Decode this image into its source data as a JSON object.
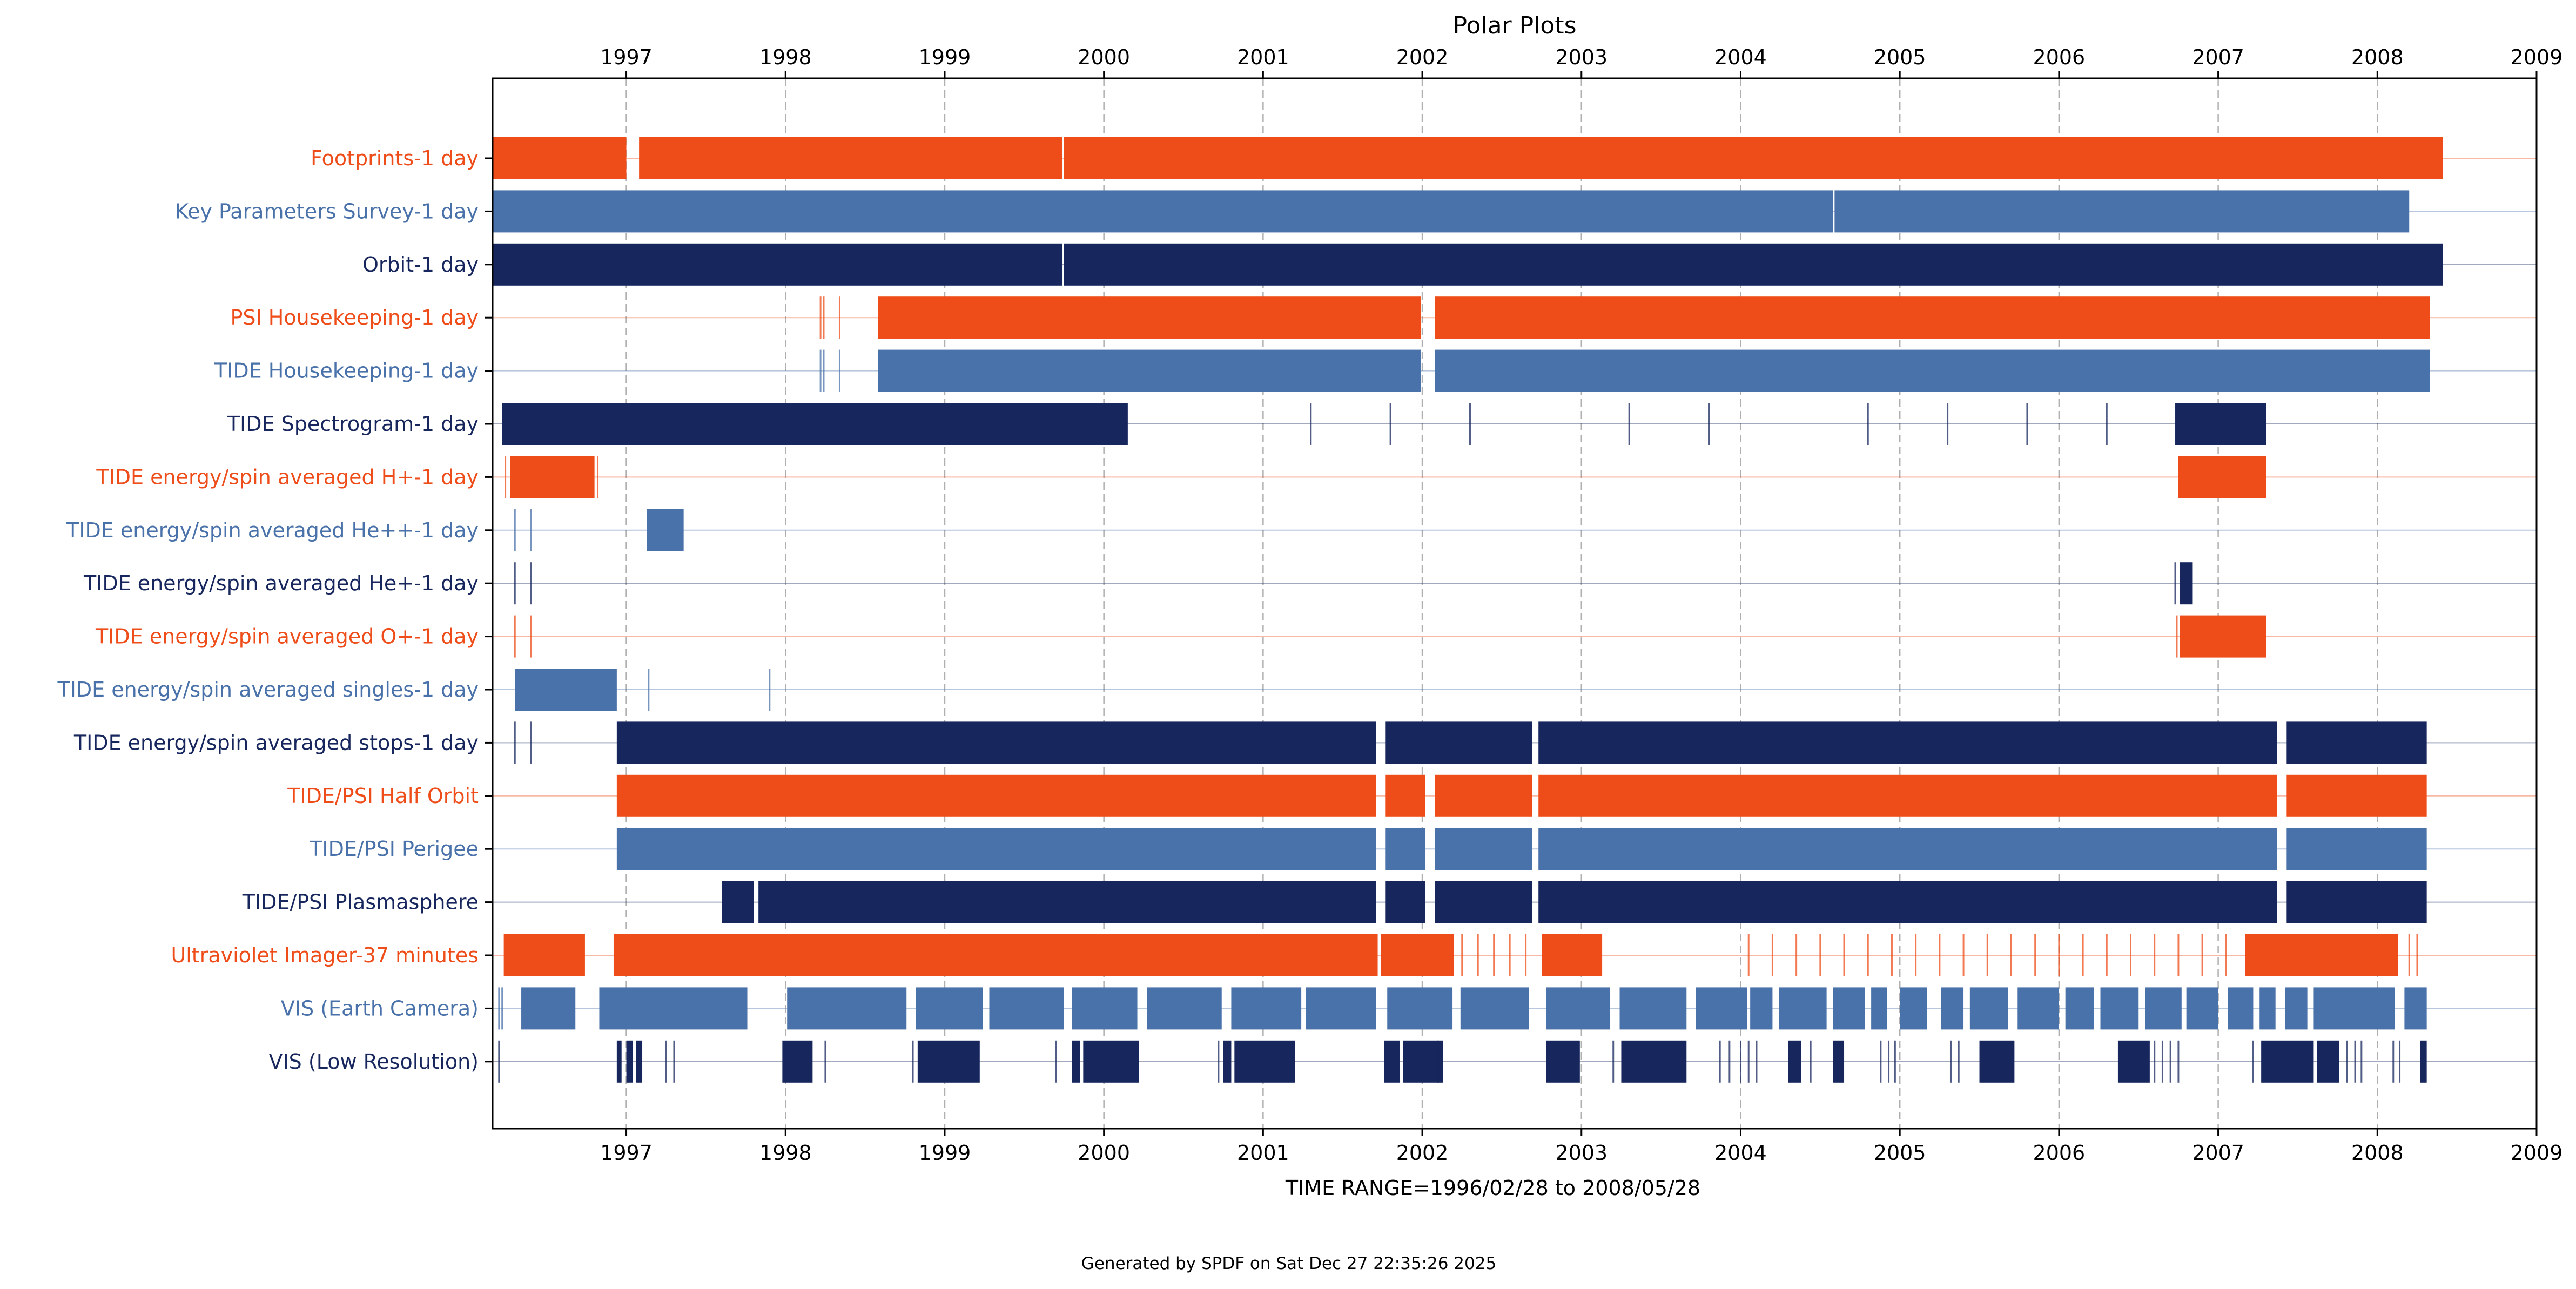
{
  "chart_data": {
    "type": "timeline",
    "title": "Polar Plots",
    "xlabel": "TIME RANGE=1996/02/28 to 2008/05/28",
    "footer": "Generated by SPDF on Sat Dec 27 22:35:26 2025",
    "xlim": [
      1996.16,
      2009.0
    ],
    "x_ticks": [
      1997,
      1998,
      1999,
      2000,
      2001,
      2002,
      2003,
      2004,
      2005,
      2006,
      2007,
      2008,
      2009
    ],
    "x_tick_labels": [
      "1997",
      "1998",
      "1999",
      "2000",
      "2001",
      "2002",
      "2003",
      "2004",
      "2005",
      "2006",
      "2007",
      "2008",
      "2009"
    ],
    "grid": "vertical dashed at year ticks",
    "palette": [
      "#ee4d19",
      "#4a72aa",
      "#17275e"
    ],
    "rows": [
      {
        "label": "Footprints-1 day",
        "color": "#ee4d19",
        "intervals": [
          [
            1996.16,
            1997.0
          ],
          [
            1997.08,
            1999.74
          ],
          [
            1999.75,
            2008.41
          ]
        ],
        "ticks": []
      },
      {
        "label": "Key Parameters Survey-1 day",
        "color": "#4a72aa",
        "intervals": [
          [
            1996.16,
            2004.58
          ],
          [
            2004.59,
            2008.2
          ]
        ],
        "ticks": []
      },
      {
        "label": "Orbit-1 day",
        "color": "#17275e",
        "intervals": [
          [
            1996.16,
            1999.74
          ],
          [
            1999.75,
            2008.41
          ]
        ],
        "ticks": []
      },
      {
        "label": "PSI Housekeeping-1 day",
        "color": "#ee4d19",
        "intervals": [
          [
            1998.58,
            2001.99
          ],
          [
            2002.08,
            2008.33
          ]
        ],
        "ticks": [
          1998.22,
          1998.24,
          1998.34
        ]
      },
      {
        "label": "TIDE Housekeeping-1 day",
        "color": "#4a72aa",
        "intervals": [
          [
            1998.58,
            2001.99
          ],
          [
            2002.08,
            2008.33
          ]
        ],
        "ticks": [
          1998.22,
          1998.24,
          1998.34
        ]
      },
      {
        "label": "TIDE Spectrogram-1 day",
        "color": "#17275e",
        "intervals": [
          [
            1996.22,
            2000.15
          ],
          [
            2006.73,
            2007.3
          ]
        ],
        "ticks": [
          2001.3,
          2001.8,
          2002.3,
          2003.3,
          2003.8,
          2004.8,
          2005.3,
          2005.8,
          2006.3
        ]
      },
      {
        "label": "TIDE energy/spin averaged H+-1 day",
        "color": "#ee4d19",
        "intervals": [
          [
            1996.27,
            1996.8
          ],
          [
            2006.75,
            2007.3
          ]
        ],
        "ticks": [
          1996.24,
          1996.82
        ]
      },
      {
        "label": "TIDE energy/spin averaged He++-1 day",
        "color": "#4a72aa",
        "intervals": [
          [
            1997.13,
            1997.36
          ]
        ],
        "ticks": [
          1996.3,
          1996.4
        ]
      },
      {
        "label": "TIDE energy/spin averaged He+-1 day",
        "color": "#17275e",
        "intervals": [
          [
            2006.76,
            2006.84
          ]
        ],
        "ticks": [
          1996.3,
          1996.4,
          2006.73
        ]
      },
      {
        "label": "TIDE energy/spin averaged O+-1 day",
        "color": "#ee4d19",
        "intervals": [
          [
            2006.76,
            2007.3
          ]
        ],
        "ticks": [
          1996.3,
          1996.4,
          2006.74
        ]
      },
      {
        "label": "TIDE energy/spin averaged singles-1 day",
        "color": "#4a72aa",
        "intervals": [
          [
            1996.3,
            1996.94
          ]
        ],
        "ticks": [
          1997.14,
          1997.9
        ]
      },
      {
        "label": "TIDE energy/spin averaged stops-1 day",
        "color": "#17275e",
        "intervals": [
          [
            1996.94,
            2001.71
          ],
          [
            2001.77,
            2002.69
          ],
          [
            2002.73,
            2007.37
          ],
          [
            2007.43,
            2008.31
          ]
        ],
        "ticks": [
          1996.3,
          1996.4
        ]
      },
      {
        "label": "TIDE/PSI Half Orbit",
        "color": "#ee4d19",
        "intervals": [
          [
            1996.94,
            2001.71
          ],
          [
            2001.77,
            2002.02
          ],
          [
            2002.08,
            2002.69
          ],
          [
            2002.73,
            2007.37
          ],
          [
            2007.43,
            2008.31
          ]
        ],
        "ticks": []
      },
      {
        "label": "TIDE/PSI Perigee",
        "color": "#4a72aa",
        "intervals": [
          [
            1996.94,
            2001.71
          ],
          [
            2001.77,
            2002.02
          ],
          [
            2002.08,
            2002.69
          ],
          [
            2002.73,
            2007.37
          ],
          [
            2007.43,
            2008.31
          ]
        ],
        "ticks": []
      },
      {
        "label": "TIDE/PSI Plasmasphere",
        "color": "#17275e",
        "intervals": [
          [
            1997.6,
            1997.8
          ],
          [
            1997.83,
            2001.71
          ],
          [
            2001.77,
            2002.02
          ],
          [
            2002.08,
            2002.69
          ],
          [
            2002.73,
            2007.37
          ],
          [
            2007.43,
            2008.31
          ]
        ],
        "ticks": []
      },
      {
        "label": "Ultraviolet Imager-37 minutes",
        "color": "#ee4d19",
        "intervals": [
          [
            1996.23,
            1996.74
          ],
          [
            1996.92,
            2001.72
          ],
          [
            2001.74,
            2002.2
          ],
          [
            2002.75,
            2003.13
          ],
          [
            2007.17,
            2008.13
          ]
        ],
        "ticks": [
          2002.25,
          2002.35,
          2002.45,
          2002.55,
          2002.65,
          2004.05,
          2004.2,
          2004.35,
          2004.5,
          2004.65,
          2004.8,
          2004.95,
          2005.1,
          2005.25,
          2005.4,
          2005.55,
          2005.7,
          2005.85,
          2006.0,
          2006.15,
          2006.3,
          2006.45,
          2006.6,
          2006.75,
          2006.9,
          2007.05,
          2008.2,
          2008.25
        ]
      },
      {
        "label": "VIS (Earth Camera)",
        "color": "#4a72aa",
        "intervals": [
          [
            1996.34,
            1996.68
          ],
          [
            1996.83,
            1997.76
          ],
          [
            1998.01,
            1998.76
          ],
          [
            1998.82,
            1999.24
          ],
          [
            1999.28,
            1999.75
          ],
          [
            1999.8,
            2000.21
          ],
          [
            2000.27,
            2000.74
          ],
          [
            2000.8,
            2001.24
          ],
          [
            2001.27,
            2001.71
          ],
          [
            2001.78,
            2002.19
          ],
          [
            2002.24,
            2002.67
          ],
          [
            2002.78,
            2003.18
          ],
          [
            2003.24,
            2003.66
          ],
          [
            2003.72,
            2004.04
          ],
          [
            2004.06,
            2004.2
          ],
          [
            2004.24,
            2004.54
          ],
          [
            2004.58,
            2004.78
          ],
          [
            2004.82,
            2004.92
          ],
          [
            2005.0,
            2005.17
          ],
          [
            2005.26,
            2005.4
          ],
          [
            2005.44,
            2005.68
          ],
          [
            2005.74,
            2006.0
          ],
          [
            2006.04,
            2006.22
          ],
          [
            2006.26,
            2006.5
          ],
          [
            2006.54,
            2006.77
          ],
          [
            2006.8,
            2007.0
          ],
          [
            2007.06,
            2007.22
          ],
          [
            2007.26,
            2007.36
          ],
          [
            2007.42,
            2007.56
          ],
          [
            2007.6,
            2008.11
          ],
          [
            2008.17,
            2008.31
          ]
        ],
        "ticks": [
          1996.2,
          1996.22
        ]
      },
      {
        "label": "VIS (Low Resolution)",
        "color": "#17275e",
        "intervals": [
          [
            1996.94,
            1996.97
          ],
          [
            1997.0,
            1997.04
          ],
          [
            1997.06,
            1997.1
          ],
          [
            1997.98,
            1998.17
          ],
          [
            1998.83,
            1999.22
          ],
          [
            1999.8,
            1999.85
          ],
          [
            1999.87,
            2000.22
          ],
          [
            2000.75,
            2000.8
          ],
          [
            2000.82,
            2001.2
          ],
          [
            2001.76,
            2001.86
          ],
          [
            2001.88,
            2002.13
          ],
          [
            2002.78,
            2002.99
          ],
          [
            2003.25,
            2003.66
          ],
          [
            2004.3,
            2004.38
          ],
          [
            2004.58,
            2004.65
          ],
          [
            2005.5,
            2005.72
          ],
          [
            2006.37,
            2006.57
          ],
          [
            2007.27,
            2007.6
          ],
          [
            2007.62,
            2007.76
          ],
          [
            2008.27,
            2008.31
          ]
        ],
        "ticks": [
          1996.2,
          1997.25,
          1997.3,
          1998.25,
          1998.8,
          1999.7,
          2000.72,
          2002.1,
          2003.2,
          2003.87,
          2003.93,
          2004.0,
          2004.05,
          2004.1,
          2004.44,
          2004.88,
          2004.93,
          2004.97,
          2005.32,
          2005.37,
          2006.6,
          2006.65,
          2006.7,
          2006.75,
          2007.22,
          2007.81,
          2007.86,
          2007.9,
          2008.1,
          2008.14
        ]
      }
    ]
  }
}
